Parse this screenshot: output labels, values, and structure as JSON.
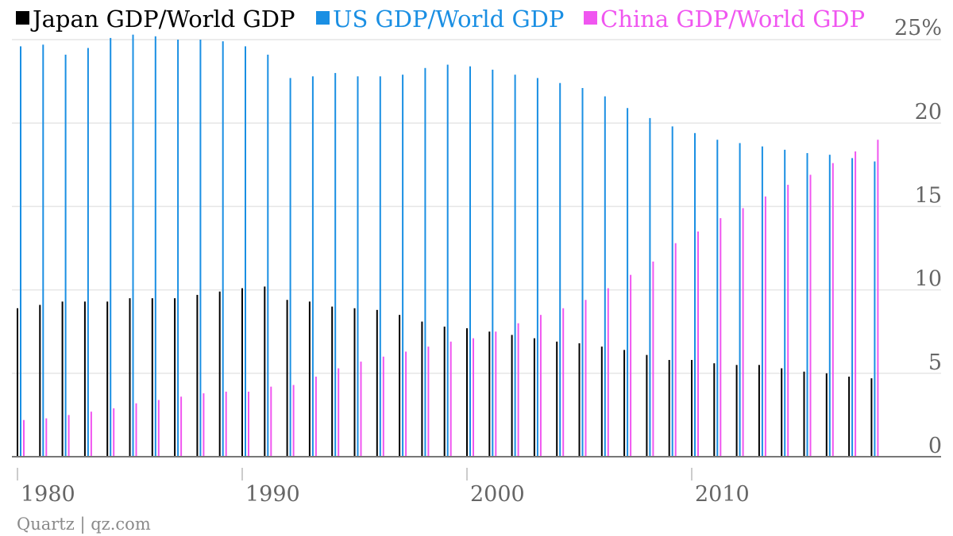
{
  "chart_data": {
    "type": "bar",
    "ylim": [
      0,
      25
    ],
    "y_unit_label": "25%",
    "y_ticks": [
      0,
      5,
      10,
      15,
      20,
      25
    ],
    "y_tick_labels": [
      "0",
      "5",
      "10",
      "15",
      "20",
      "25%"
    ],
    "x_ticks": [
      1980,
      1990,
      2000,
      2010
    ],
    "x_tick_labels": [
      "1980",
      "1990",
      "2000",
      "2010"
    ],
    "grid": true,
    "legend_position": "top-left",
    "source": "Quartz | qz.com",
    "x": [
      1980,
      1981,
      1982,
      1983,
      1984,
      1985,
      1986,
      1987,
      1988,
      1989,
      1990,
      1991,
      1992,
      1993,
      1994,
      1995,
      1996,
      1997,
      1998,
      1999,
      2000,
      2001,
      2002,
      2003,
      2004,
      2005,
      2006,
      2007,
      2008,
      2009,
      2010,
      2011,
      2012,
      2013,
      2014,
      2015,
      2016,
      2017,
      2018
    ],
    "series": [
      {
        "name": "Japan GDP/World GDP",
        "color": "#000000",
        "values": [
          8.9,
          9.1,
          9.3,
          9.3,
          9.3,
          9.5,
          9.5,
          9.5,
          9.7,
          9.9,
          10.1,
          10.2,
          9.4,
          9.3,
          9.0,
          8.9,
          8.8,
          8.5,
          8.1,
          7.8,
          7.7,
          7.5,
          7.3,
          7.1,
          6.9,
          6.8,
          6.6,
          6.4,
          6.1,
          5.8,
          5.8,
          5.6,
          5.5,
          5.5,
          5.3,
          5.1,
          5.0,
          4.8,
          4.7
        ]
      },
      {
        "name": "US GDP/World GDP",
        "color": "#1a8fe3",
        "values": [
          24.6,
          24.7,
          24.1,
          24.5,
          25.1,
          25.3,
          25.2,
          25.0,
          25.0,
          24.9,
          24.6,
          24.1,
          22.7,
          22.8,
          23.0,
          22.8,
          22.8,
          22.9,
          23.3,
          23.5,
          23.4,
          23.2,
          22.9,
          22.7,
          22.4,
          22.1,
          21.6,
          20.9,
          20.3,
          19.8,
          19.4,
          19.0,
          18.8,
          18.6,
          18.4,
          18.2,
          18.1,
          17.9,
          17.7
        ]
      },
      {
        "name": "China GDP/World GDP",
        "color": "#f056f0",
        "values": [
          2.2,
          2.3,
          2.5,
          2.7,
          2.9,
          3.2,
          3.4,
          3.6,
          3.8,
          3.9,
          3.9,
          4.2,
          4.3,
          4.8,
          5.3,
          5.7,
          6.0,
          6.3,
          6.6,
          6.9,
          7.1,
          7.5,
          8.0,
          8.5,
          8.9,
          9.4,
          10.1,
          10.9,
          11.7,
          12.8,
          13.5,
          14.3,
          14.9,
          15.6,
          16.3,
          16.9,
          17.6,
          18.3,
          19.0
        ]
      }
    ]
  }
}
